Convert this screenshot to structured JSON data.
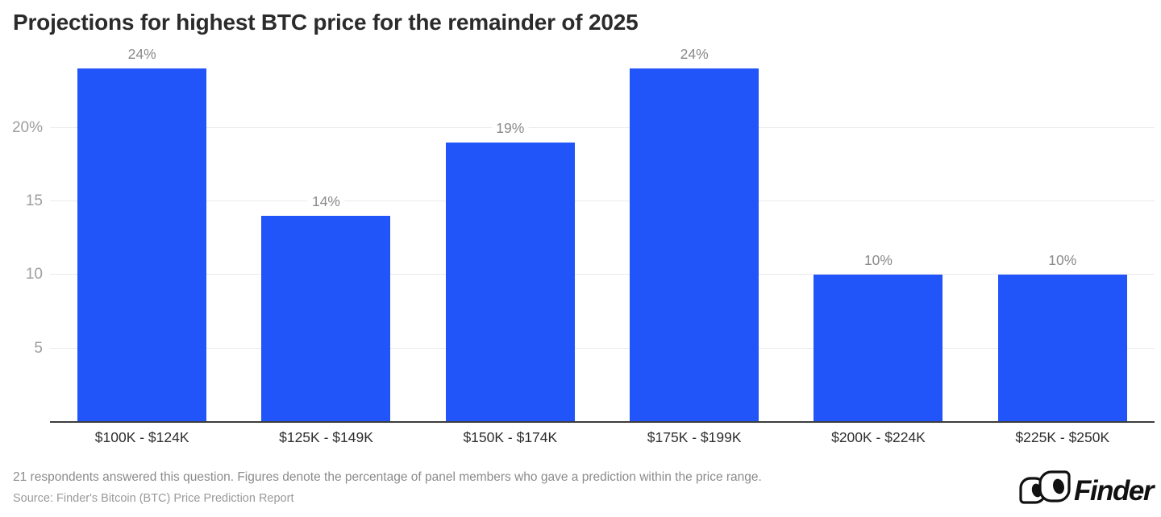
{
  "title": "Projections for highest BTC price for the remainder of 2025",
  "chart_data": {
    "type": "bar",
    "title": "Projections for highest BTC price for the remainder of 2025",
    "categories": [
      "$100K - $124K",
      "$125K - $149K",
      "$150K - $174K",
      "$175K - $199K",
      "$200K - $224K",
      "$225K - $250K"
    ],
    "values": [
      24,
      14,
      19,
      24,
      10,
      10
    ],
    "bar_labels": [
      "24%",
      "14%",
      "19%",
      "24%",
      "10%",
      "10%"
    ],
    "yticks": [
      {
        "value": 5,
        "label": "5"
      },
      {
        "value": 10,
        "label": "10"
      },
      {
        "value": 15,
        "label": "15"
      },
      {
        "value": 20,
        "label": "20%"
      }
    ],
    "ylim": [
      0,
      25.5
    ],
    "grid": true,
    "legend": false,
    "xlabel": "",
    "ylabel": "",
    "bar_color": "#2155FA"
  },
  "footer": {
    "note": "21 respondents answered this question. Figures denote the percentage of panel members who gave a prediction within the price range.",
    "source": "Source: Finder's Bitcoin (BTC) Price Prediction Report"
  },
  "logo": {
    "brand": "Finder",
    "icon": "finder-eyes-icon",
    "color": "#111111"
  }
}
